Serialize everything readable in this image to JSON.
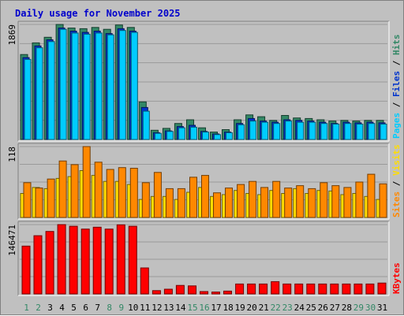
{
  "title": "Daily usage for November 2025",
  "colors": {
    "title": "#0000cc",
    "pages": "#00ccff",
    "files": "#0033cc",
    "hits": "#338866",
    "sites": "#ff8800",
    "visits": "#ffdd00",
    "kbytes": "#ff0000",
    "weekend_day": "#338866",
    "weekday": "#000000"
  },
  "side_labels": {
    "top": [
      "Pages",
      "Files",
      "Hits"
    ],
    "middle": [
      "Sites",
      "Visits"
    ],
    "bottom": [
      "KBytes"
    ],
    "separator": " / "
  },
  "chart_data": [
    {
      "type": "bar",
      "name": "hits-files-pages",
      "days": [
        "1",
        "2",
        "3",
        "4",
        "5",
        "6",
        "7",
        "8",
        "9",
        "10",
        "11",
        "12",
        "13",
        "14",
        "15",
        "16",
        "17",
        "18",
        "19",
        "20",
        "21",
        "22",
        "23",
        "24",
        "25",
        "26",
        "27",
        "28",
        "29",
        "30",
        "31"
      ],
      "weekend_days": [
        "1",
        "2",
        "8",
        "9",
        "15",
        "16",
        "22",
        "23",
        "29",
        "30"
      ],
      "ymax_label": "1869",
      "ylim": [
        0,
        1869
      ],
      "series": [
        {
          "name": "Hits",
          "values": [
            1380,
            1570,
            1660,
            1869,
            1810,
            1800,
            1820,
            1790,
            1860,
            1820,
            610,
            150,
            180,
            260,
            320,
            190,
            120,
            160,
            320,
            400,
            370,
            310,
            390,
            350,
            340,
            320,
            300,
            310,
            300,
            310,
            310
          ]
        },
        {
          "name": "Files",
          "values": [
            1330,
            1520,
            1620,
            1810,
            1760,
            1740,
            1760,
            1720,
            1800,
            1760,
            520,
            110,
            140,
            210,
            230,
            130,
            90,
            120,
            260,
            340,
            300,
            280,
            320,
            310,
            300,
            280,
            260,
            280,
            270,
            280,
            270
          ]
        },
        {
          "name": "Pages",
          "values": [
            1300,
            1490,
            1590,
            1790,
            1730,
            1710,
            1730,
            1700,
            1770,
            1740,
            460,
            100,
            130,
            190,
            200,
            120,
            80,
            110,
            240,
            300,
            280,
            260,
            300,
            280,
            280,
            260,
            250,
            260,
            250,
            260,
            250
          ]
        }
      ]
    },
    {
      "type": "bar",
      "name": "visits-sites",
      "days": [
        "1",
        "2",
        "3",
        "4",
        "5",
        "6",
        "7",
        "8",
        "9",
        "10",
        "11",
        "12",
        "13",
        "14",
        "15",
        "16",
        "17",
        "18",
        "19",
        "20",
        "21",
        "22",
        "23",
        "24",
        "25",
        "26",
        "27",
        "28",
        "29",
        "30",
        "31"
      ],
      "ymax_label": "118",
      "ylim": [
        0,
        118
      ],
      "series": [
        {
          "name": "Visits",
          "values": [
            40,
            50,
            48,
            65,
            68,
            78,
            70,
            60,
            60,
            55,
            30,
            35,
            35,
            30,
            42,
            50,
            35,
            38,
            45,
            40,
            38,
            45,
            40,
            48,
            40,
            45,
            44,
            38,
            40,
            35,
            30
          ]
        },
        {
          "name": "Sites",
          "values": [
            58,
            49,
            64,
            94,
            88,
            118,
            92,
            80,
            83,
            82,
            58,
            75,
            48,
            48,
            67,
            70,
            41,
            49,
            55,
            60,
            50,
            60,
            49,
            53,
            48,
            58,
            53,
            50,
            59,
            72,
            56
          ]
        }
      ]
    },
    {
      "type": "bar",
      "name": "kbytes",
      "days": [
        "1",
        "2",
        "3",
        "4",
        "5",
        "6",
        "7",
        "8",
        "9",
        "10",
        "11",
        "12",
        "13",
        "14",
        "15",
        "16",
        "17",
        "18",
        "19",
        "20",
        "21",
        "22",
        "23",
        "24",
        "25",
        "26",
        "27",
        "28",
        "29",
        "30",
        "31"
      ],
      "ymax_label": "146471",
      "ylim": [
        0,
        146471
      ],
      "series": [
        {
          "name": "KBytes",
          "values": [
            101000,
            123000,
            132000,
            146471,
            143000,
            137000,
            141000,
            137000,
            146000,
            143000,
            55000,
            7000,
            10000,
            18000,
            17000,
            5000,
            4000,
            6000,
            21000,
            21000,
            21000,
            26000,
            21000,
            21000,
            21000,
            21000,
            21000,
            21000,
            21000,
            21000,
            23000
          ]
        }
      ]
    }
  ]
}
